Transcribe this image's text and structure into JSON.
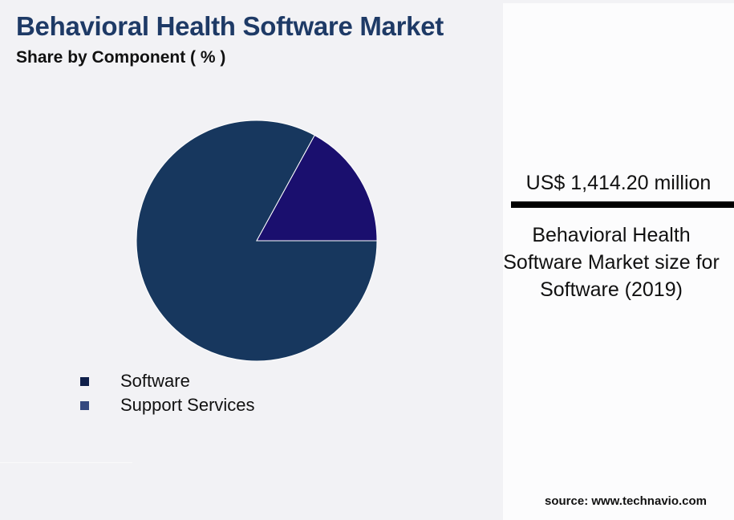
{
  "chart_data": {
    "type": "pie",
    "title": "Behavioral Health Software Market",
    "subtitle": "Share by Component ( % )",
    "categories": [
      "Software",
      "Support Services"
    ],
    "values": [
      83,
      17
    ],
    "slice_colors": [
      "#17375e",
      "#1a0f6e"
    ],
    "legend_colors": [
      "#0f1f4a",
      "#34487f"
    ],
    "legend": "bottom-left"
  },
  "panel": {
    "value": "US$ 1,414.20 million",
    "description": "Behavioral Health Software Market size for Software (2019)"
  },
  "source": "source: www.technavio.com"
}
